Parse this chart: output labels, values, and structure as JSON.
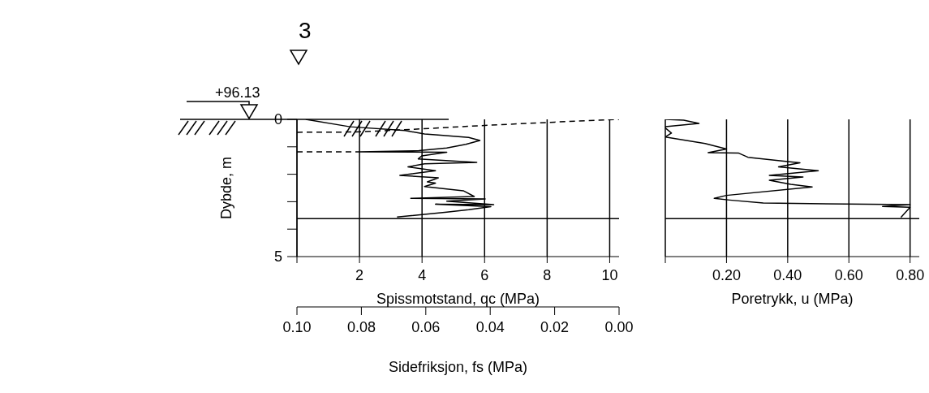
{
  "chart_data": [
    {
      "type": "line",
      "xlabel": "Spissmotstand, qc (MPa)",
      "x2label": "Sidefriksjon, fs (MPa)",
      "ylabel": "Dybde, m",
      "annotations": [
        "3",
        "+96.13"
      ],
      "xlim": [
        0,
        10.3
      ],
      "xticks": [
        {
          "value": 0,
          "label": null
        },
        2,
        4,
        6,
        8,
        10
      ],
      "x2lim": [
        0.1,
        0
      ],
      "x2ticks": [
        {
          "value": 0.1,
          "label": "0.10"
        },
        {
          "value": 0.08,
          "label": "0.08"
        },
        {
          "value": 0.06,
          "label": "0.06"
        },
        {
          "value": 0.04,
          "label": "0.04"
        },
        {
          "value": 0.02,
          "label": "0.02"
        },
        {
          "value": 0,
          "label": "0.00"
        }
      ],
      "ylim": [
        5,
        0
      ],
      "yticks": [
        0,
        {
          "value": 1,
          "label": null
        },
        {
          "value": 2,
          "label": null
        },
        {
          "value": 3,
          "label": null
        },
        {
          "value": 4,
          "label": null
        },
        5
      ],
      "grid": "x",
      "marker": "none",
      "ref_lines": [
        {
          "axis": "y",
          "value": 3.62
        }
      ],
      "series": [
        {
          "color": "#000000",
          "line_style": "solid",
          "x": [
            0.28,
            1.7,
            3.46,
            4.08,
            4.43,
            5.49,
            5.85,
            5.4,
            4.79,
            3.9,
            2.0,
            4.79,
            3.99,
            3.88,
            5.75,
            4.08,
            3.55,
            4.43,
            3.29,
            4.52,
            4.17,
            4.43,
            4.08,
            5.32,
            5.67,
            3.64,
            6.02,
            4.79,
            6.29,
            4.43,
            6.2,
            5.49,
            4.79,
            3.2
          ],
          "values": [
            0,
            0.27,
            0.41,
            0.53,
            0.56,
            0.66,
            0.77,
            0.91,
            1.04,
            1.14,
            1.18,
            1.2,
            1.33,
            1.44,
            1.57,
            1.62,
            1.73,
            1.87,
            2.04,
            2.13,
            2.28,
            2.32,
            2.45,
            2.6,
            2.81,
            2.88,
            2.9,
            2.98,
            3.11,
            3.09,
            3.18,
            3.29,
            3.38,
            3.56
          ]
        },
        {
          "color": "#000000",
          "line_style": "dashed",
          "axis": "x2",
          "x": [
            0.1,
            0.082,
            0.065,
            0.04,
            0.02,
            0
          ],
          "values": [
            0.47,
            0.46,
            0.37,
            0.21,
            0.1,
            0
          ]
        },
        {
          "color": "#000000",
          "line_style": "dashed",
          "x": [
            0,
            2
          ],
          "values": [
            1.18,
            1.18
          ]
        }
      ]
    },
    {
      "type": "line",
      "xlabel": "Poretrykk, u (MPa)",
      "xlim": [
        0,
        0.83
      ],
      "xticks": [
        {
          "value": 0,
          "label": null
        },
        {
          "value": 0.2,
          "label": "0.20"
        },
        {
          "value": 0.4,
          "label": "0.40"
        },
        {
          "value": 0.6,
          "label": "0.60"
        },
        {
          "value": 0.8,
          "label": "0.80"
        }
      ],
      "ylim": [
        5,
        0
      ],
      "tick_labels": "x",
      "grid": "x",
      "marker": "none",
      "ref_lines": [
        {
          "axis": "y",
          "value": 3.62
        }
      ],
      "series": [
        {
          "color": "#000000",
          "line_style": "solid",
          "x": [
            0,
            0.06,
            0.11,
            0,
            0,
            0.02,
            0,
            0.13,
            0.2,
            0.14,
            0.24,
            0.27,
            0.4,
            0.44,
            0.37,
            0.5,
            0.34,
            0.45,
            0.34,
            0.41,
            0.48,
            0.2,
            0.16,
            0.21,
            0.32,
            0.8,
            0.71,
            0.8,
            0.77
          ],
          "values": [
            0,
            0.03,
            0.15,
            0.27,
            0.31,
            0.5,
            0.64,
            0.88,
            1.08,
            1.21,
            1.23,
            1.38,
            1.54,
            1.58,
            1.73,
            1.87,
            2.04,
            2.1,
            2.22,
            2.37,
            2.46,
            2.77,
            2.88,
            2.94,
            3.05,
            3.11,
            3.17,
            3.2,
            3.57
          ]
        }
      ]
    }
  ]
}
